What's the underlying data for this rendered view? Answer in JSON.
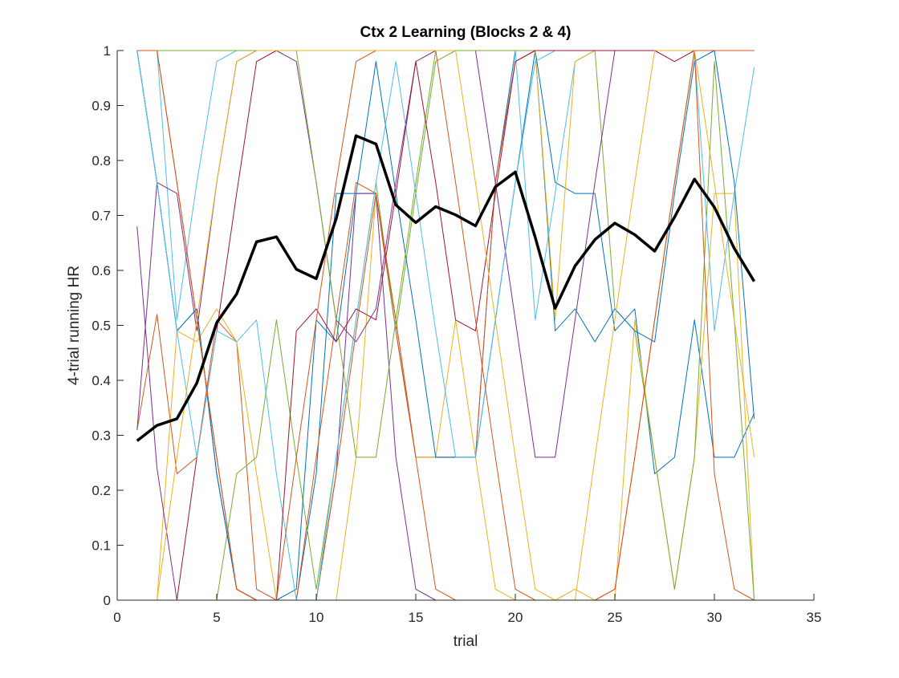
{
  "chart_data": {
    "type": "line",
    "title": "Ctx 2 Learning (Blocks 2 & 4)",
    "xlabel": "trial",
    "ylabel": "4-trial running HR",
    "xlim": [
      0,
      35
    ],
    "ylim": [
      0,
      1
    ],
    "xticks": [
      0,
      5,
      10,
      15,
      20,
      25,
      30,
      35
    ],
    "yticks": [
      0,
      0.1,
      0.2,
      0.3,
      0.4,
      0.5,
      0.6,
      0.7,
      0.8,
      0.9,
      1
    ],
    "grid": false,
    "legend": "none",
    "x": [
      1,
      2,
      3,
      4,
      5,
      6,
      7,
      8,
      9,
      10,
      11,
      12,
      13,
      14,
      15,
      16,
      17,
      18,
      19,
      20,
      21,
      22,
      23,
      24,
      25,
      26,
      27,
      28,
      29,
      30,
      31,
      32
    ],
    "series": [
      {
        "color": "#0072BD",
        "values": [
          1.0,
          0.76,
          0.49,
          0.53,
          0.23,
          0.02,
          0.0,
          0.0,
          0.0,
          0.23,
          0.74,
          0.74,
          0.74,
          0.49,
          0.26,
          0.26,
          0.26,
          0.26,
          0.76,
          1.0,
          1.0,
          0.76,
          0.74,
          0.74,
          0.49,
          0.53,
          0.23,
          0.26,
          0.51,
          0.26,
          0.26,
          0.34
        ]
      },
      {
        "color": "#D95319",
        "values": [
          0.31,
          0.52,
          0.23,
          0.26,
          0.51,
          0.47,
          0.02,
          0.0,
          0.0,
          0.26,
          0.51,
          0.76,
          0.74,
          0.49,
          0.26,
          0.26,
          0.26,
          0.26,
          0.76,
          0.98,
          1.0,
          1.0,
          1.0,
          1.0,
          1.0,
          1.0,
          1.0,
          1.0,
          1.0,
          1.0,
          1.0,
          1.0
        ]
      },
      {
        "color": "#EDB120",
        "values": [
          0.0,
          0.0,
          0.49,
          0.47,
          0.53,
          0.47,
          0.23,
          0.0,
          0.0,
          0.0,
          0.0,
          0.26,
          0.74,
          0.51,
          0.26,
          0.26,
          0.51,
          0.26,
          0.02,
          0.0,
          0.0,
          0.0,
          0.02,
          0.0,
          0.0,
          0.51,
          0.26,
          0.02,
          0.26,
          0.74,
          0.74,
          0.0
        ]
      },
      {
        "color": "#7E2F8E",
        "values": [
          0.68,
          0.24,
          0.0,
          0.0,
          0.0,
          0.0,
          0.0,
          0.0,
          0.0,
          0.0,
          0.23,
          0.74,
          0.74,
          0.26,
          0.02,
          0.0,
          0.0,
          0.0,
          0.0,
          0.0,
          0.0,
          0.0,
          0.0,
          0.0,
          0.0,
          0.0,
          0.0,
          0.0,
          0.0,
          0.0,
          0.0,
          0.0
        ]
      },
      {
        "color": "#77AC30",
        "values": [
          0.0,
          0.0,
          0.0,
          0.0,
          0.0,
          0.23,
          0.26,
          0.51,
          0.26,
          0.02,
          0.26,
          0.51,
          0.76,
          0.49,
          0.74,
          0.98,
          1.0,
          1.0,
          1.0,
          1.0,
          1.0,
          1.0,
          1.0,
          1.0,
          0.53,
          0.49,
          0.26,
          0.02,
          0.26,
          0.98,
          0.51,
          0.0
        ]
      },
      {
        "color": "#4DBEEE",
        "values": [
          1.0,
          1.0,
          0.51,
          0.76,
          0.98,
          1.0,
          1.0,
          1.0,
          1.0,
          1.0,
          1.0,
          1.0,
          1.0,
          1.0,
          1.0,
          1.0,
          1.0,
          1.0,
          1.0,
          1.0,
          0.51,
          0.74,
          0.98,
          1.0,
          1.0,
          1.0,
          1.0,
          1.0,
          1.0,
          0.49,
          0.74,
          0.97
        ]
      },
      {
        "color": "#A2142F",
        "values": [
          0.0,
          0.0,
          0.0,
          0.26,
          0.49,
          0.74,
          0.98,
          1.0,
          1.0,
          1.0,
          1.0,
          1.0,
          1.0,
          1.0,
          1.0,
          1.0,
          1.0,
          1.0,
          1.0,
          1.0,
          1.0,
          1.0,
          1.0,
          1.0,
          1.0,
          1.0,
          1.0,
          0.98,
          1.0,
          1.0,
          1.0,
          1.0
        ]
      },
      {
        "color": "#0072BD",
        "values": [
          1.0,
          0.76,
          0.49,
          0.53,
          0.23,
          0.02,
          0.0,
          0.0,
          0.02,
          0.51,
          0.47,
          0.74,
          0.98,
          0.74,
          0.51,
          0.26,
          0.26,
          0.26,
          0.51,
          0.76,
          1.0,
          0.49,
          0.53,
          0.47,
          0.53,
          0.49,
          0.47,
          0.74,
          0.98,
          1.0,
          0.76,
          0.33
        ]
      },
      {
        "color": "#D95319",
        "values": [
          1.0,
          1.0,
          0.76,
          0.51,
          0.26,
          0.02,
          0.0,
          0.0,
          0.0,
          0.0,
          0.23,
          0.49,
          0.74,
          0.51,
          0.26,
          0.02,
          0.0,
          0.0,
          0.0,
          0.0,
          0.0,
          0.0,
          0.0,
          0.0,
          0.02,
          0.26,
          0.51,
          0.76,
          1.0,
          0.23,
          0.02,
          0.0
        ]
      },
      {
        "color": "#EDB120",
        "values": [
          1.0,
          1.0,
          1.0,
          1.0,
          1.0,
          1.0,
          1.0,
          1.0,
          1.0,
          1.0,
          1.0,
          1.0,
          1.0,
          1.0,
          1.0,
          1.0,
          1.0,
          1.0,
          1.0,
          1.0,
          1.0,
          0.51,
          0.98,
          1.0,
          1.0,
          1.0,
          1.0,
          1.0,
          1.0,
          1.0,
          1.0,
          1.0
        ]
      },
      {
        "color": "#7E2F8E",
        "values": [
          0.31,
          0.76,
          0.74,
          0.49,
          0.76,
          0.98,
          1.0,
          1.0,
          0.98,
          0.76,
          0.51,
          0.47,
          0.53,
          0.76,
          0.98,
          1.0,
          1.0,
          1.0,
          0.76,
          0.51,
          0.26,
          0.26,
          0.51,
          0.76,
          1.0,
          1.0,
          1.0,
          1.0,
          1.0,
          1.0,
          1.0,
          1.0
        ]
      },
      {
        "color": "#77AC30",
        "values": [
          1.0,
          1.0,
          1.0,
          1.0,
          1.0,
          1.0,
          1.0,
          1.0,
          1.0,
          0.76,
          0.51,
          0.26,
          0.26,
          0.51,
          0.76,
          1.0,
          1.0,
          1.0,
          1.0,
          1.0,
          1.0,
          1.0,
          1.0,
          1.0,
          1.0,
          1.0,
          1.0,
          1.0,
          1.0,
          1.0,
          1.0,
          1.0
        ]
      },
      {
        "color": "#4DBEEE",
        "values": [
          1.0,
          0.76,
          0.49,
          0.26,
          0.49,
          0.47,
          0.51,
          0.23,
          0.0,
          0.0,
          0.26,
          0.51,
          0.76,
          0.98,
          0.74,
          0.49,
          0.26,
          0.26,
          0.51,
          0.76,
          0.98,
          1.0,
          1.0,
          1.0,
          1.0,
          1.0,
          1.0,
          1.0,
          1.0,
          1.0,
          1.0,
          1.0
        ]
      },
      {
        "color": "#A2142F",
        "values": [
          0.0,
          0.0,
          0.0,
          0.0,
          0.0,
          0.0,
          0.0,
          0.0,
          0.49,
          0.53,
          0.47,
          0.53,
          0.51,
          0.74,
          0.98,
          0.76,
          0.51,
          0.49,
          0.74,
          0.98,
          1.0,
          1.0,
          1.0,
          1.0,
          1.0,
          1.0,
          1.0,
          1.0,
          1.0,
          1.0,
          1.0,
          1.0
        ]
      },
      {
        "color": "#D95319",
        "values": [
          1.0,
          1.0,
          0.76,
          0.51,
          0.26,
          0.02,
          0.0,
          0.0,
          0.26,
          0.51,
          0.76,
          0.98,
          1.0,
          1.0,
          1.0,
          1.0,
          0.76,
          0.51,
          0.26,
          0.02,
          0.0,
          0.0,
          0.0,
          0.0,
          0.02,
          0.26,
          0.51,
          0.76,
          1.0,
          1.0,
          1.0,
          1.0
        ]
      },
      {
        "color": "#EDB120",
        "values": [
          0.0,
          0.0,
          0.26,
          0.51,
          0.76,
          0.98,
          1.0,
          1.0,
          1.0,
          1.0,
          1.0,
          1.0,
          1.0,
          1.0,
          1.0,
          1.0,
          1.0,
          0.76,
          0.51,
          0.26,
          0.02,
          0.0,
          0.0,
          0.26,
          0.51,
          0.76,
          1.0,
          1.0,
          1.0,
          0.76,
          0.51,
          0.26
        ]
      },
      {
        "color": "#000000",
        "emphasis": true,
        "values": [
          0.29,
          0.318,
          0.33,
          0.395,
          0.505,
          0.557,
          0.652,
          0.661,
          0.602,
          0.585,
          0.694,
          0.845,
          0.83,
          0.719,
          0.687,
          0.716,
          0.701,
          0.681,
          0.752,
          0.779,
          0.66,
          0.531,
          0.608,
          0.656,
          0.686,
          0.665,
          0.635,
          0.697,
          0.766,
          0.715,
          0.64,
          0.58
        ]
      }
    ]
  }
}
